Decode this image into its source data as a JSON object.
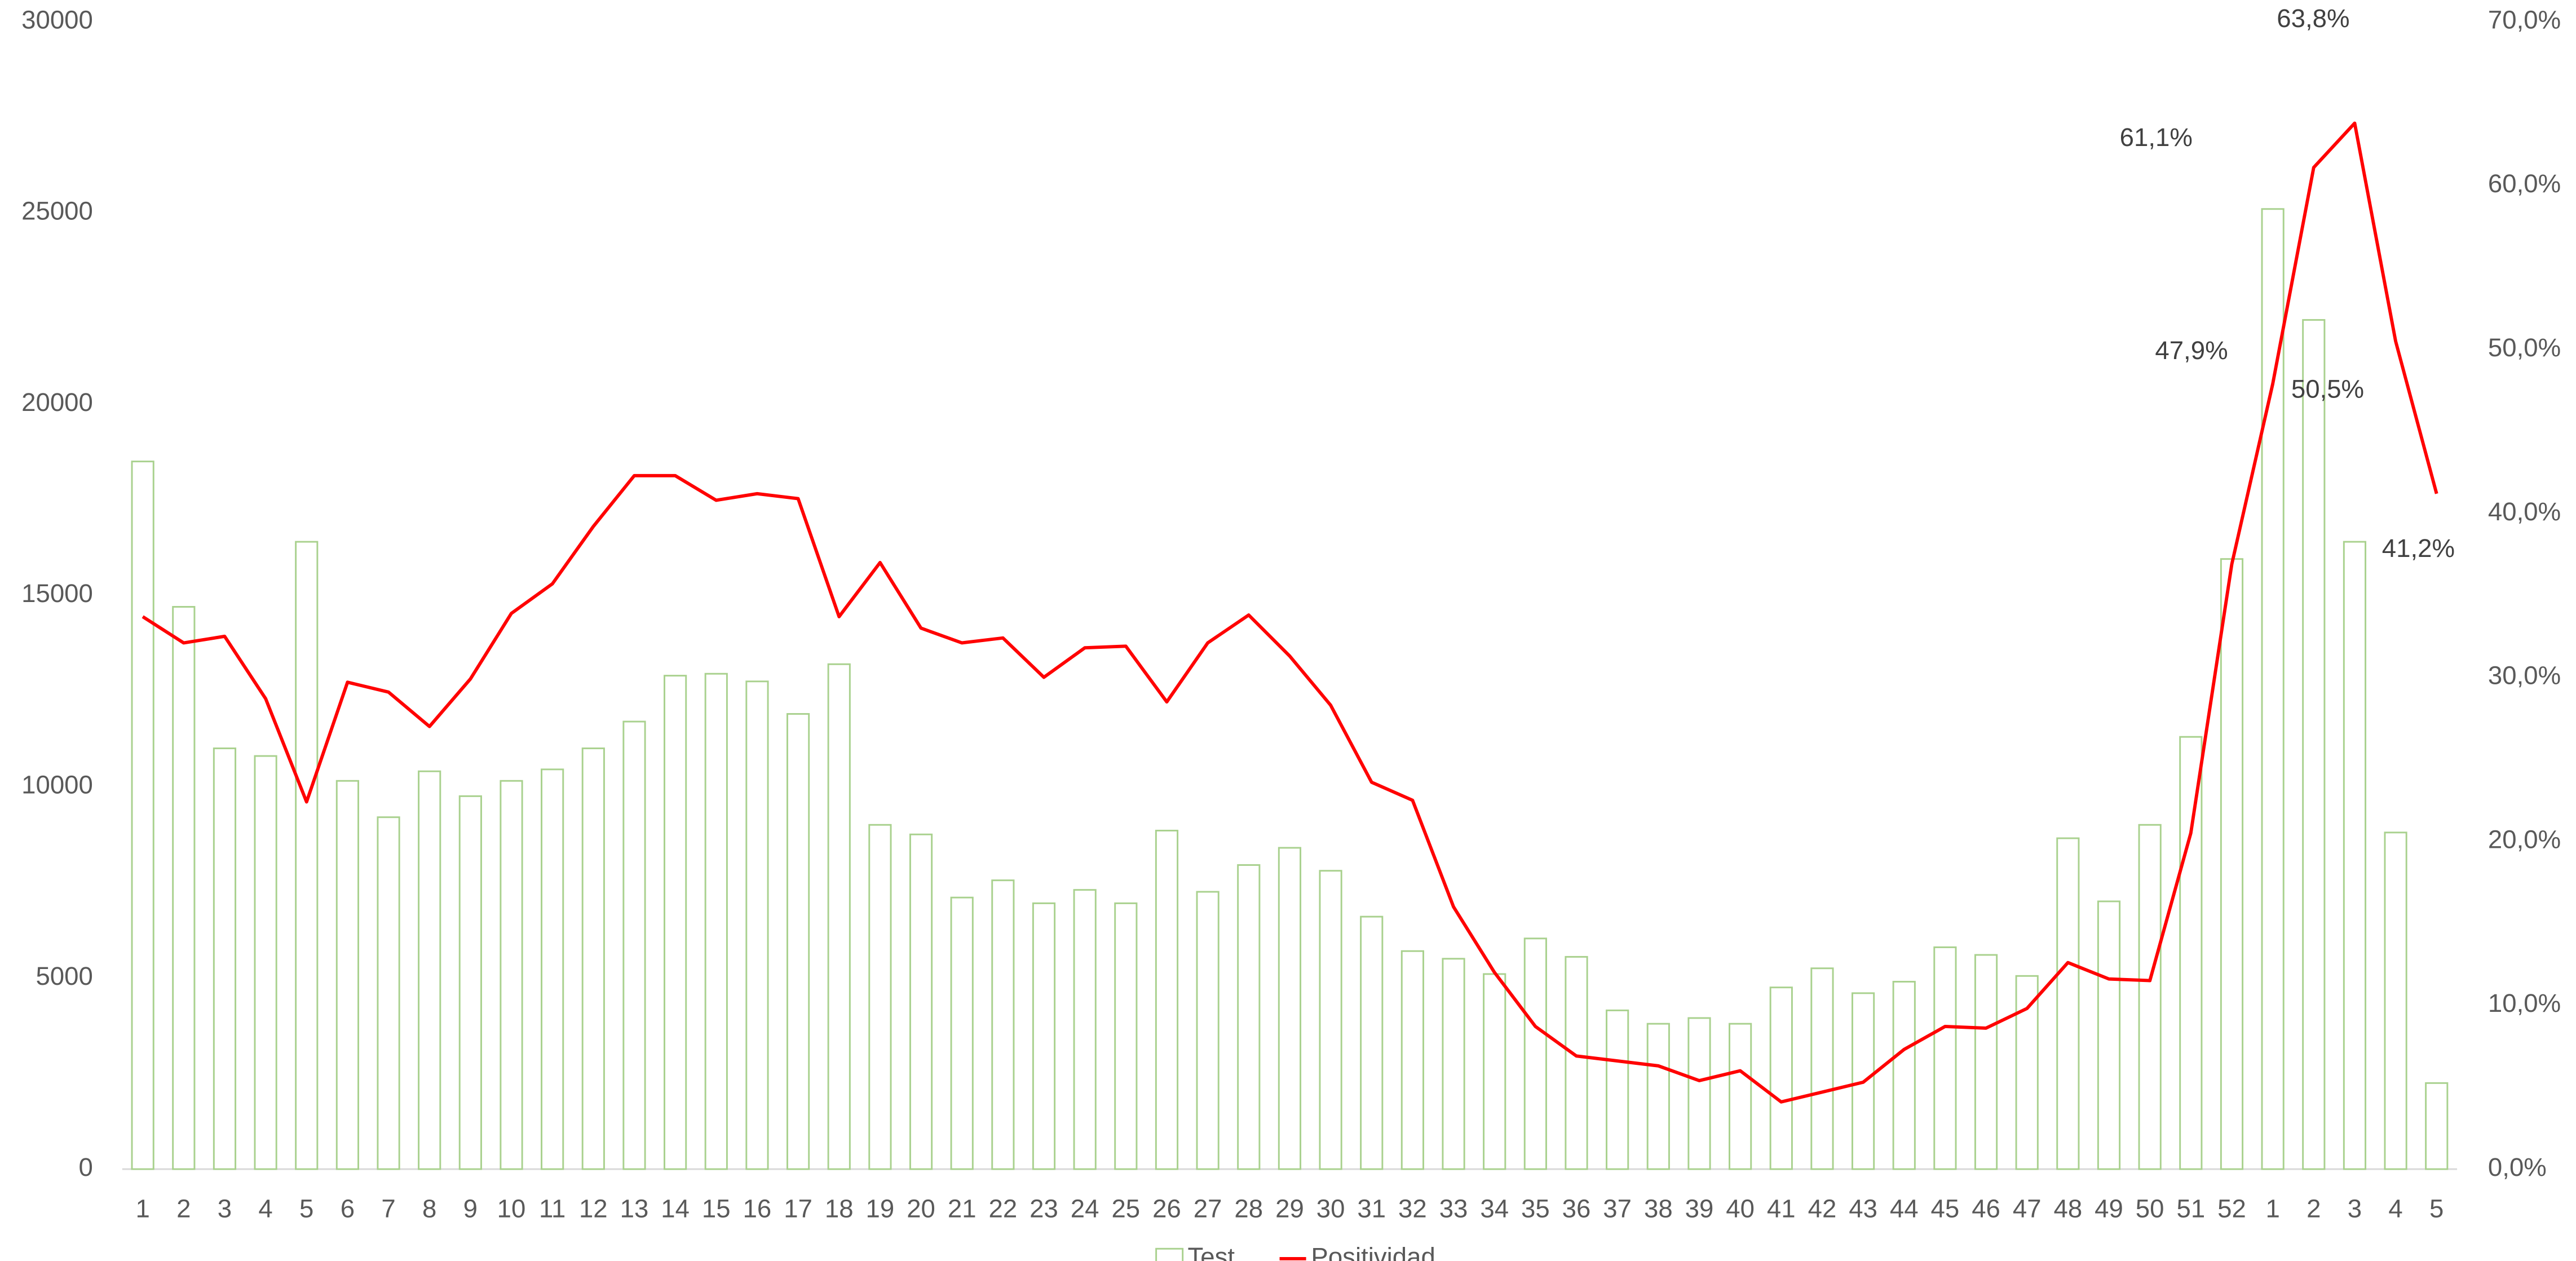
{
  "chart_data": {
    "type": "bar",
    "categories": [
      "1",
      "2",
      "3",
      "4",
      "5",
      "6",
      "7",
      "8",
      "9",
      "10",
      "11",
      "12",
      "13",
      "14",
      "15",
      "16",
      "17",
      "18",
      "19",
      "20",
      "21",
      "22",
      "23",
      "24",
      "25",
      "26",
      "27",
      "28",
      "29",
      "30",
      "31",
      "32",
      "33",
      "34",
      "35",
      "36",
      "37",
      "38",
      "39",
      "40",
      "41",
      "42",
      "43",
      "44",
      "45",
      "46",
      "47",
      "48",
      "49",
      "50",
      "51",
      "52",
      "1",
      "2",
      "3",
      "4",
      "5"
    ],
    "series": [
      {
        "name": "Test",
        "type": "bar",
        "color": "#a9d18e",
        "values": [
          18500,
          14700,
          11000,
          10800,
          16400,
          10150,
          9200,
          10400,
          9750,
          10150,
          10450,
          11000,
          11700,
          12900,
          12950,
          12750,
          11900,
          13200,
          9000,
          8750,
          7100,
          7550,
          6950,
          7300,
          6950,
          8850,
          7250,
          7950,
          8400,
          7800,
          6600,
          5700,
          5500,
          5100,
          6030,
          5550,
          4150,
          3800,
          3950,
          3800,
          4750,
          5250,
          4600,
          4900,
          5800,
          5600,
          5050,
          8650,
          7000,
          9000,
          11300,
          15950,
          25100,
          22200,
          16400,
          8800,
          2250
        ]
      },
      {
        "name": "Positividad",
        "type": "line",
        "axis": "y2",
        "color": "#ff0000",
        "values": [
          33.7,
          32.1,
          32.5,
          28.7,
          22.4,
          29.7,
          29.1,
          27.0,
          29.9,
          33.9,
          35.7,
          39.2,
          42.3,
          42.3,
          40.8,
          41.2,
          40.9,
          33.7,
          37.0,
          33.0,
          32.1,
          32.4,
          30.0,
          31.8,
          31.9,
          28.5,
          32.1,
          33.8,
          31.3,
          28.3,
          23.6,
          22.5,
          16.0,
          12.0,
          8.7,
          6.9,
          6.6,
          6.3,
          5.4,
          6.0,
          4.1,
          4.7,
          5.3,
          7.3,
          8.7,
          8.6,
          9.8,
          12.6,
          11.6,
          11.5,
          20.5,
          36.9,
          47.9,
          61.1,
          63.8,
          50.5,
          41.2
        ],
        "value_labels": [
          null,
          null,
          null,
          null,
          null,
          null,
          null,
          null,
          null,
          null,
          null,
          null,
          null,
          null,
          null,
          null,
          null,
          null,
          null,
          null,
          null,
          null,
          null,
          null,
          null,
          null,
          null,
          null,
          null,
          null,
          null,
          null,
          null,
          null,
          null,
          null,
          null,
          null,
          null,
          null,
          null,
          null,
          null,
          null,
          null,
          null,
          null,
          null,
          null,
          null,
          null,
          null,
          "47,9%",
          "61,1%",
          "63,8%",
          "50,5%",
          "41,2%"
        ]
      }
    ],
    "ylim": [
      0,
      30000
    ],
    "yticks": [
      0,
      5000,
      10000,
      15000,
      20000,
      25000,
      30000
    ],
    "y2lim": [
      0,
      70
    ],
    "y2ticks": [
      {
        "value": 0,
        "label": "0,0%"
      },
      {
        "value": 10,
        "label": "10,0%"
      },
      {
        "value": 20,
        "label": "20,0%"
      },
      {
        "value": 30,
        "label": "30,0%"
      },
      {
        "value": 40,
        "label": "40,0%"
      },
      {
        "value": 50,
        "label": "50,0%"
      },
      {
        "value": 60,
        "label": "60,0%"
      },
      {
        "value": 70,
        "label": "70,0%"
      }
    ],
    "grid": false,
    "legend": "bottom"
  }
}
